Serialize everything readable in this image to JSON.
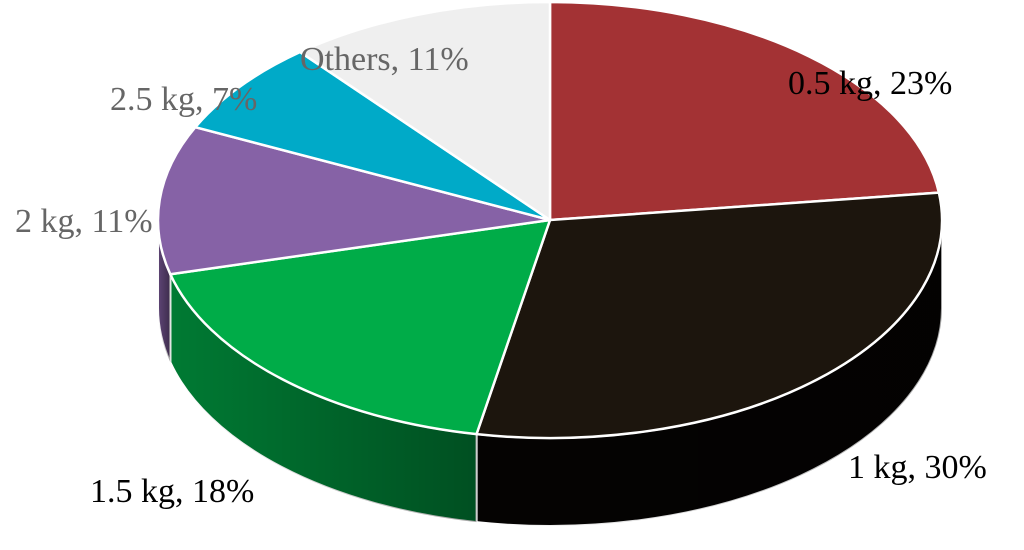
{
  "chart_data": {
    "type": "pie",
    "style": "3d-tilted",
    "start": "12 o'clock",
    "direction": "clockwise",
    "legend": "none",
    "slices": [
      {
        "name": "0.5 kg",
        "value": 23,
        "label": "0.5 kg, 23%",
        "color": "#A33234",
        "side": "#6E1F21",
        "label_color": "#000000"
      },
      {
        "name": "1 kg",
        "value": 30,
        "label": "1 kg, 30%",
        "color": "#1C150D",
        "side": "#050302",
        "label_color": "#000000"
      },
      {
        "name": "1.5 kg",
        "value": 18,
        "label": "1.5 kg, 18%",
        "color": "#00AC48",
        "side": "#007A33",
        "label_color": "#000000"
      },
      {
        "name": "2 kg",
        "value": 11,
        "label": "2 kg, 11%",
        "color": "#8662A6",
        "side": "#5E4575",
        "label_color": "#666666"
      },
      {
        "name": "2.5 kg",
        "value": 7,
        "label": "2.5 kg, 7%",
        "color": "#00AAC8",
        "side": "#00788D",
        "label_color": "#666666"
      },
      {
        "name": "Others",
        "value": 11,
        "label": "Others, 11%",
        "color": "#EFEFEF",
        "side": "#BDBDBD",
        "label_color": "#666666"
      }
    ]
  }
}
